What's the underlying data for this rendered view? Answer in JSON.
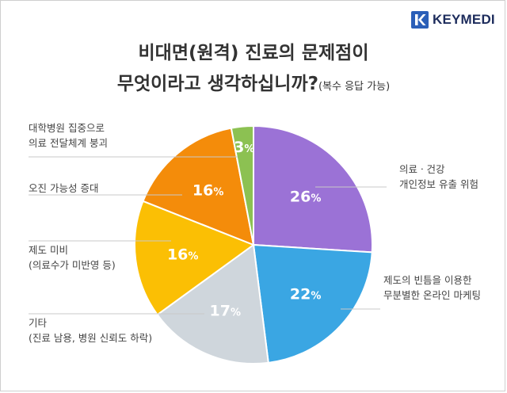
{
  "brand": {
    "name": "KEYMEDI",
    "accent": "#2b5fb8"
  },
  "title_line1": "비대면(원격) 진료의 문제점이",
  "title_line2": "무엇이라고 생각하십니까?",
  "title_note": "(복수 응답 가능)",
  "chart_data": {
    "type": "pie",
    "title": "비대면(원격) 진료의 문제점이 무엇이라고 생각하십니까?(복수 응답 가능)",
    "unit": "%",
    "slices": [
      {
        "label": [
          "의료ㆍ건강",
          "개인정보 유출 위험"
        ],
        "value": 26,
        "color": "#9b72d6"
      },
      {
        "label": [
          "제도의 빈틈을 이용한",
          "무분별한 온라인 마케팅"
        ],
        "value": 22,
        "color": "#3aa6e3"
      },
      {
        "label": [
          "기타",
          "(진료 남용, 병원 신뢰도 하락)"
        ],
        "value": 17,
        "color": "#cfd6dc"
      },
      {
        "label": [
          "제도 미비",
          "(의료수가 미반영 등)"
        ],
        "value": 16,
        "color": "#fbbf04"
      },
      {
        "label": [
          "오진 가능성 증대"
        ],
        "value": 16,
        "color": "#f48c0a"
      },
      {
        "label": [
          "대학병원 집중으로",
          "의료 전달체계 붕괴"
        ],
        "value": 3,
        "color": "#8cc152"
      }
    ]
  }
}
